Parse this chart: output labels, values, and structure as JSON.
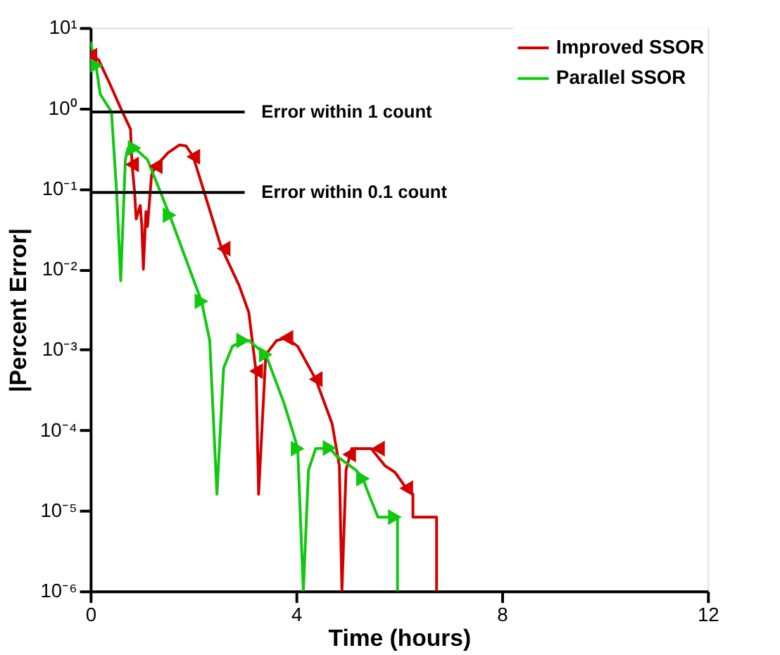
{
  "chart_data": {
    "type": "line",
    "xlabel": "Time (hours)",
    "ylabel": "|Percent Error|",
    "log": "y",
    "xlim": [
      0,
      12
    ],
    "xticks": [
      0,
      4,
      8,
      12
    ],
    "ylim": [
      1e-06,
      10
    ],
    "yticks": [
      {
        "value": 1e-06,
        "label": "10⁻⁶"
      },
      {
        "value": 1e-05,
        "label": "10⁻⁵"
      },
      {
        "value": 0.0001,
        "label": "10⁻⁴"
      },
      {
        "value": 0.001,
        "label": "10⁻³"
      },
      {
        "value": 0.01,
        "label": "10⁻²"
      },
      {
        "value": 0.1,
        "label": "10⁻¹"
      },
      {
        "value": 1,
        "label": "10⁰"
      },
      {
        "value": 10,
        "label": "10¹"
      }
    ],
    "grid": false,
    "legend": "top right",
    "line_style": "solid",
    "series": [
      {
        "name": "Improved SSOR",
        "marker": "none",
        "color": "#d40000",
        "x": [
          0,
          0.16,
          0.38,
          0.59,
          0.78,
          0.81,
          0.86,
          0.89,
          0.97,
          1.0,
          1.03,
          1.08,
          1.11,
          1.19,
          1.27,
          1.51,
          1.73,
          1.86,
          2.0,
          2.54,
          2.89,
          3.08,
          3.22,
          3.27,
          3.41,
          3.62,
          3.81,
          4.03,
          4.38,
          4.7,
          4.84,
          4.89,
          4.97,
          5.08,
          5.46,
          5.73,
          5.92,
          6.14,
          6.27,
          6.27,
          6.73,
          6.73
        ],
        "values": [
          4.5,
          4.0,
          2.0,
          1.0,
          0.55,
          0.2,
          0.09,
          0.042,
          0.062,
          0.035,
          0.01,
          0.052,
          0.034,
          0.15,
          0.19,
          0.28,
          0.35,
          0.34,
          0.25,
          0.019,
          0.0063,
          0.0029,
          0.00054,
          1.6e-05,
          0.00087,
          0.0013,
          0.0014,
          0.0011,
          0.00043,
          0.00012,
          3.6e-05,
          1e-06,
          3.2e-05,
          5.9e-05,
          5.9e-05,
          3.6e-05,
          3e-05,
          1.9e-05,
          1.6e-05,
          8.3e-06,
          8.3e-06,
          1e-06
        ]
      },
      {
        "name": "Parallel SSOR",
        "marker": "none",
        "color": "#10c810",
        "x": [
          0,
          0.11,
          0.19,
          0.41,
          0.51,
          0.59,
          0.68,
          0.73,
          0.86,
          1.11,
          1.54,
          2.16,
          2.32,
          2.46,
          2.59,
          2.76,
          2.97,
          3.08,
          3.41,
          3.76,
          3.97,
          4.03,
          4.14,
          4.24,
          4.38,
          4.65,
          4.78,
          5.16,
          5.3,
          5.38,
          5.59,
          5.92,
          5.97,
          5.97
        ],
        "values": [
          6.7,
          3.4,
          1.5,
          0.9,
          0.091,
          0.0072,
          0.23,
          0.32,
          0.32,
          0.23,
          0.047,
          0.004,
          0.0013,
          1.6e-05,
          0.00059,
          0.0011,
          0.0013,
          0.0013,
          0.00087,
          0.00022,
          8.1e-05,
          5.9e-05,
          1e-06,
          3.2e-05,
          5.9e-05,
          6e-05,
          4.8e-05,
          3.2e-05,
          2.5e-05,
          1.8e-05,
          8.3e-06,
          8.3e-06,
          8.3e-06,
          1e-06
        ]
      },
      {
        "type": "scatter",
        "marker": "triangle-left",
        "color": "#d40000",
        "x": [
          0,
          0.81,
          1.27,
          2.0,
          2.59,
          3.22,
          3.81,
          4.38,
          5.03,
          5.59,
          6.14
        ],
        "values": [
          4.5,
          0.2,
          0.19,
          0.25,
          0.018,
          0.00054,
          0.0014,
          0.00043,
          5e-05,
          5.9e-05,
          1.9e-05
        ]
      },
      {
        "type": "scatter",
        "marker": "triangle-right",
        "color": "#10c810",
        "x": [
          0.11,
          0.86,
          1.54,
          2.16,
          2.97,
          3.41,
          4.03,
          4.65,
          5.3,
          5.92
        ],
        "values": [
          3.4,
          0.32,
          0.047,
          0.004,
          0.0013,
          0.00087,
          5.9e-05,
          6e-05,
          2.5e-05,
          8.3e-06
        ]
      },
      {
        "marker": "none",
        "color": "#000000",
        "x": [
          0,
          3
        ],
        "values": [
          0.9,
          0.9
        ]
      },
      {
        "marker": "none",
        "color": "#000000",
        "x": [
          0,
          3
        ],
        "values": [
          0.09,
          0.09
        ]
      }
    ],
    "annotations": [
      {
        "text": "Error within 1 count",
        "x": 3,
        "y": 0.9
      },
      {
        "text": "Error within 0.1 count",
        "x": 3,
        "y": 0.09
      }
    ]
  }
}
